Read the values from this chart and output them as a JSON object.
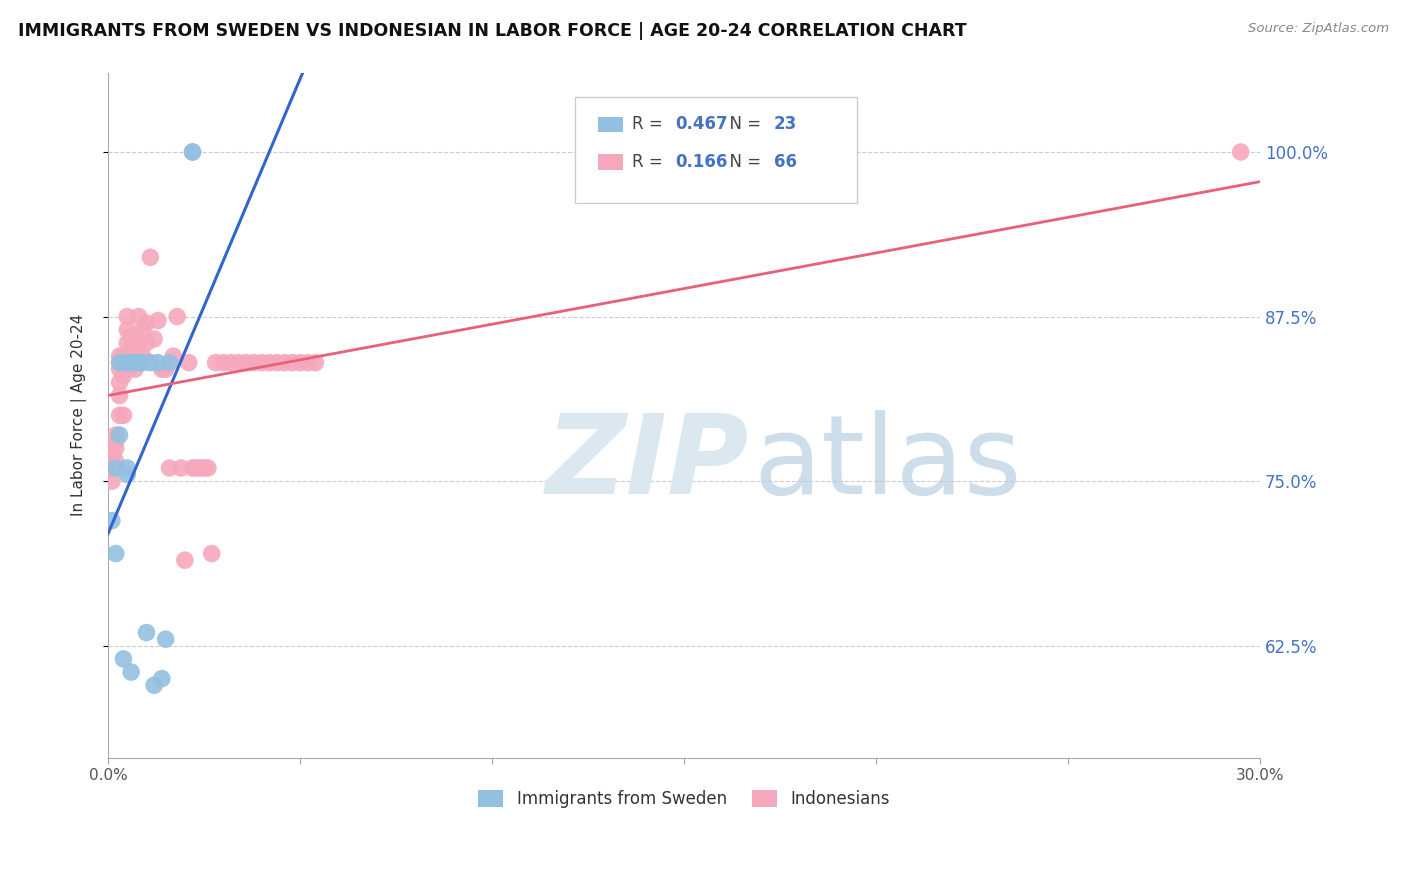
{
  "title": "IMMIGRANTS FROM SWEDEN VS INDONESIAN IN LABOR FORCE | AGE 20-24 CORRELATION CHART",
  "source": "Source: ZipAtlas.com",
  "ylabel": "In Labor Force | Age 20-24",
  "ytick_labels": [
    "100.0%",
    "87.5%",
    "75.0%",
    "62.5%"
  ],
  "ytick_values": [
    1.0,
    0.875,
    0.75,
    0.625
  ],
  "xmin": 0.0,
  "xmax": 0.3,
  "ymin": 0.54,
  "ymax": 1.06,
  "legend_blue_r": "0.467",
  "legend_blue_n": "23",
  "legend_pink_r": "0.166",
  "legend_pink_n": "66",
  "legend_label_blue": "Immigrants from Sweden",
  "legend_label_pink": "Indonesians",
  "blue_color": "#92C0E0",
  "pink_color": "#F5A8BC",
  "trendline_blue": "#3366CC",
  "trendline_pink": "#E8607A",
  "sweden_x": [
    0.001,
    0.002,
    0.002,
    0.003,
    0.003,
    0.004,
    0.004,
    0.005,
    0.005,
    0.006,
    0.006,
    0.007,
    0.008,
    0.009,
    0.01,
    0.011,
    0.012,
    0.013,
    0.014,
    0.015,
    0.016,
    0.022,
    0.022
  ],
  "sweden_y": [
    0.72,
    0.695,
    0.76,
    0.785,
    0.84,
    0.615,
    0.84,
    0.755,
    0.76,
    0.605,
    0.84,
    0.84,
    0.84,
    0.84,
    0.635,
    0.84,
    0.595,
    0.84,
    0.6,
    0.63,
    0.84,
    1.0,
    1.0
  ],
  "indonesia_x": [
    0.001,
    0.001,
    0.001,
    0.002,
    0.002,
    0.002,
    0.002,
    0.003,
    0.003,
    0.003,
    0.003,
    0.003,
    0.003,
    0.004,
    0.004,
    0.004,
    0.004,
    0.005,
    0.005,
    0.005,
    0.005,
    0.006,
    0.006,
    0.006,
    0.007,
    0.007,
    0.007,
    0.008,
    0.008,
    0.008,
    0.009,
    0.009,
    0.01,
    0.01,
    0.011,
    0.012,
    0.013,
    0.014,
    0.015,
    0.016,
    0.017,
    0.018,
    0.019,
    0.02,
    0.021,
    0.022,
    0.023,
    0.024,
    0.025,
    0.026,
    0.027,
    0.028,
    0.03,
    0.032,
    0.034,
    0.036,
    0.038,
    0.04,
    0.042,
    0.044,
    0.046,
    0.048,
    0.05,
    0.052,
    0.054,
    0.295
  ],
  "indonesia_y": [
    0.77,
    0.76,
    0.75,
    0.785,
    0.78,
    0.775,
    0.765,
    0.845,
    0.84,
    0.835,
    0.825,
    0.815,
    0.8,
    0.845,
    0.84,
    0.83,
    0.8,
    0.875,
    0.865,
    0.855,
    0.835,
    0.86,
    0.85,
    0.84,
    0.86,
    0.845,
    0.835,
    0.875,
    0.855,
    0.84,
    0.865,
    0.845,
    0.87,
    0.855,
    0.92,
    0.858,
    0.872,
    0.835,
    0.835,
    0.76,
    0.845,
    0.875,
    0.76,
    0.69,
    0.84,
    0.76,
    0.76,
    0.76,
    0.76,
    0.76,
    0.695,
    0.84,
    0.84,
    0.84,
    0.84,
    0.84,
    0.84,
    0.84,
    0.84,
    0.84,
    0.84,
    0.84,
    0.84,
    0.84,
    0.84,
    1.0
  ]
}
